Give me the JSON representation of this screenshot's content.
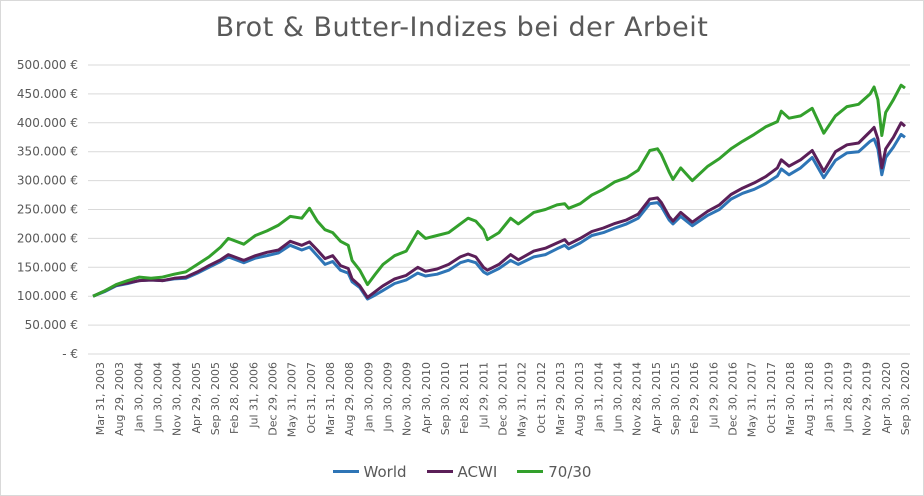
{
  "chart_data": {
    "type": "line",
    "title": "Brot & Butter-Indizes bei der Arbeit",
    "ylim": [
      0,
      500000
    ],
    "y_ticks": [
      {
        "value": 0,
        "label": "-  €"
      },
      {
        "value": 50000,
        "label": "50.000 €"
      },
      {
        "value": 100000,
        "label": "100.000 €"
      },
      {
        "value": 150000,
        "label": "150.000 €"
      },
      {
        "value": 200000,
        "label": "200.000 €"
      },
      {
        "value": 250000,
        "label": "250.000 €"
      },
      {
        "value": 300000,
        "label": "300.000 €"
      },
      {
        "value": 350000,
        "label": "350.000 €"
      },
      {
        "value": 400000,
        "label": "400.000 €"
      },
      {
        "value": 450000,
        "label": "450.000 €"
      },
      {
        "value": 500000,
        "label": "500.000 €"
      }
    ],
    "x_tick_labels": [
      "Mar 31, 2003",
      "Aug 29, 2003",
      "Jan 30, 2004",
      "Jun 30, 2004",
      "Nov 30, 2004",
      "Apr 29, 2005",
      "Sep 30, 2005",
      "Feb 28, 2006",
      "Jul 31, 2006",
      "Dec 29, 2006",
      "May 31, 2007",
      "Oct 31, 2007",
      "Mar 31, 2008",
      "Aug 29, 2008",
      "Jan 30, 2009",
      "Jun 30, 2009",
      "Nov 30, 2009",
      "Apr 30, 2010",
      "Sep 30, 2010",
      "Feb 28, 2011",
      "Jul 29, 2011",
      "Dec 30, 2011",
      "May 31, 2012",
      "Oct 31, 2012",
      "Mar 29, 2013",
      "Aug 30, 2013",
      "Jan 31, 2014",
      "Jun 30, 2014",
      "Nov 28, 2014",
      "Apr 30, 2015",
      "Sep 30, 2015",
      "Feb 29, 2016",
      "Jul 29, 2016",
      "Dec 30, 2016",
      "May 31, 2017",
      "Oct 31, 2017",
      "Mar 30, 2018",
      "Aug 31, 2018",
      "Jan 31, 2019",
      "Jun 28, 2019",
      "Nov 29, 2019",
      "Apr 30, 2020",
      "Sep 30, 2020"
    ],
    "grid": "horizontal",
    "legend_position": "bottom",
    "series": [
      {
        "name": "World",
        "color": "#2E75B6",
        "points": [
          [
            "2003-03",
            100000
          ],
          [
            "2003-06",
            108000
          ],
          [
            "2003-09",
            118000
          ],
          [
            "2003-12",
            122000
          ],
          [
            "2004-03",
            127000
          ],
          [
            "2004-06",
            128000
          ],
          [
            "2004-09",
            127000
          ],
          [
            "2004-12",
            130000
          ],
          [
            "2005-03",
            131000
          ],
          [
            "2005-06",
            140000
          ],
          [
            "2005-09",
            150000
          ],
          [
            "2005-12",
            160000
          ],
          [
            "2006-02",
            168000
          ],
          [
            "2006-06",
            158000
          ],
          [
            "2006-09",
            166000
          ],
          [
            "2006-12",
            170000
          ],
          [
            "2007-03",
            175000
          ],
          [
            "2007-06",
            188000
          ],
          [
            "2007-09",
            180000
          ],
          [
            "2007-11",
            185000
          ],
          [
            "2008-01",
            170000
          ],
          [
            "2008-03",
            155000
          ],
          [
            "2008-05",
            160000
          ],
          [
            "2008-07",
            145000
          ],
          [
            "2008-09",
            140000
          ],
          [
            "2008-10",
            125000
          ],
          [
            "2008-12",
            115000
          ],
          [
            "2009-02",
            95000
          ],
          [
            "2009-04",
            102000
          ],
          [
            "2009-06",
            110000
          ],
          [
            "2009-09",
            122000
          ],
          [
            "2009-12",
            128000
          ],
          [
            "2010-03",
            140000
          ],
          [
            "2010-05",
            135000
          ],
          [
            "2010-08",
            138000
          ],
          [
            "2010-11",
            145000
          ],
          [
            "2011-02",
            158000
          ],
          [
            "2011-04",
            162000
          ],
          [
            "2011-06",
            158000
          ],
          [
            "2011-08",
            142000
          ],
          [
            "2011-09",
            138000
          ],
          [
            "2011-12",
            148000
          ],
          [
            "2012-03",
            162000
          ],
          [
            "2012-05",
            155000
          ],
          [
            "2012-09",
            168000
          ],
          [
            "2012-12",
            172000
          ],
          [
            "2013-03",
            182000
          ],
          [
            "2013-05",
            188000
          ],
          [
            "2013-06",
            182000
          ],
          [
            "2013-09",
            192000
          ],
          [
            "2013-12",
            205000
          ],
          [
            "2014-03",
            210000
          ],
          [
            "2014-06",
            218000
          ],
          [
            "2014-09",
            225000
          ],
          [
            "2014-12",
            235000
          ],
          [
            "2015-03",
            260000
          ],
          [
            "2015-05",
            262000
          ],
          [
            "2015-06",
            255000
          ],
          [
            "2015-08",
            232000
          ],
          [
            "2015-09",
            225000
          ],
          [
            "2015-11",
            238000
          ],
          [
            "2016-02",
            222000
          ],
          [
            "2016-06",
            240000
          ],
          [
            "2016-09",
            250000
          ],
          [
            "2016-12",
            268000
          ],
          [
            "2017-03",
            278000
          ],
          [
            "2017-06",
            285000
          ],
          [
            "2017-09",
            295000
          ],
          [
            "2017-12",
            308000
          ],
          [
            "2018-01",
            320000
          ],
          [
            "2018-03",
            310000
          ],
          [
            "2018-06",
            322000
          ],
          [
            "2018-09",
            340000
          ],
          [
            "2018-12",
            305000
          ],
          [
            "2019-03",
            335000
          ],
          [
            "2019-06",
            348000
          ],
          [
            "2019-09",
            350000
          ],
          [
            "2019-12",
            368000
          ],
          [
            "2020-01",
            372000
          ],
          [
            "2020-02",
            355000
          ],
          [
            "2020-03",
            310000
          ],
          [
            "2020-04",
            340000
          ],
          [
            "2020-06",
            358000
          ],
          [
            "2020-08",
            380000
          ],
          [
            "2020-09",
            375000
          ]
        ]
      },
      {
        "name": "ACWI",
        "color": "#5B1F58",
        "points": [
          [
            "2003-03",
            100000
          ],
          [
            "2003-06",
            109000
          ],
          [
            "2003-09",
            119000
          ],
          [
            "2003-12",
            123000
          ],
          [
            "2004-03",
            127000
          ],
          [
            "2004-06",
            128000
          ],
          [
            "2004-09",
            127000
          ],
          [
            "2004-12",
            131000
          ],
          [
            "2005-03",
            133000
          ],
          [
            "2005-06",
            142000
          ],
          [
            "2005-09",
            153000
          ],
          [
            "2005-12",
            163000
          ],
          [
            "2006-02",
            172000
          ],
          [
            "2006-06",
            162000
          ],
          [
            "2006-09",
            170000
          ],
          [
            "2006-12",
            176000
          ],
          [
            "2007-03",
            180000
          ],
          [
            "2007-06",
            195000
          ],
          [
            "2007-09",
            188000
          ],
          [
            "2007-11",
            194000
          ],
          [
            "2008-01",
            180000
          ],
          [
            "2008-03",
            165000
          ],
          [
            "2008-05",
            170000
          ],
          [
            "2008-07",
            153000
          ],
          [
            "2008-09",
            148000
          ],
          [
            "2008-10",
            130000
          ],
          [
            "2008-12",
            118000
          ],
          [
            "2009-02",
            98000
          ],
          [
            "2009-04",
            108000
          ],
          [
            "2009-06",
            118000
          ],
          [
            "2009-09",
            130000
          ],
          [
            "2009-12",
            136000
          ],
          [
            "2010-03",
            150000
          ],
          [
            "2010-05",
            143000
          ],
          [
            "2010-08",
            147000
          ],
          [
            "2010-11",
            155000
          ],
          [
            "2011-02",
            168000
          ],
          [
            "2011-04",
            173000
          ],
          [
            "2011-06",
            168000
          ],
          [
            "2011-08",
            150000
          ],
          [
            "2011-09",
            145000
          ],
          [
            "2011-12",
            155000
          ],
          [
            "2012-03",
            172000
          ],
          [
            "2012-05",
            163000
          ],
          [
            "2012-09",
            178000
          ],
          [
            "2012-12",
            183000
          ],
          [
            "2013-03",
            192000
          ],
          [
            "2013-05",
            198000
          ],
          [
            "2013-06",
            190000
          ],
          [
            "2013-09",
            200000
          ],
          [
            "2013-12",
            212000
          ],
          [
            "2014-03",
            218000
          ],
          [
            "2014-06",
            226000
          ],
          [
            "2014-09",
            232000
          ],
          [
            "2014-12",
            242000
          ],
          [
            "2015-03",
            268000
          ],
          [
            "2015-05",
            270000
          ],
          [
            "2015-06",
            262000
          ],
          [
            "2015-08",
            238000
          ],
          [
            "2015-09",
            230000
          ],
          [
            "2015-11",
            245000
          ],
          [
            "2016-02",
            228000
          ],
          [
            "2016-06",
            247000
          ],
          [
            "2016-09",
            258000
          ],
          [
            "2016-12",
            276000
          ],
          [
            "2017-03",
            287000
          ],
          [
            "2017-06",
            296000
          ],
          [
            "2017-09",
            307000
          ],
          [
            "2017-12",
            322000
          ],
          [
            "2018-01",
            336000
          ],
          [
            "2018-03",
            325000
          ],
          [
            "2018-06",
            336000
          ],
          [
            "2018-09",
            352000
          ],
          [
            "2018-12",
            316000
          ],
          [
            "2019-03",
            350000
          ],
          [
            "2019-06",
            362000
          ],
          [
            "2019-09",
            365000
          ],
          [
            "2019-12",
            385000
          ],
          [
            "2020-01",
            392000
          ],
          [
            "2020-02",
            372000
          ],
          [
            "2020-03",
            322000
          ],
          [
            "2020-04",
            355000
          ],
          [
            "2020-06",
            375000
          ],
          [
            "2020-08",
            400000
          ],
          [
            "2020-09",
            394000
          ]
        ]
      },
      {
        "name": "70/30",
        "color": "#33A02C",
        "points": [
          [
            "2003-03",
            100000
          ],
          [
            "2003-06",
            109000
          ],
          [
            "2003-09",
            120000
          ],
          [
            "2003-12",
            127000
          ],
          [
            "2004-03",
            133000
          ],
          [
            "2004-06",
            131000
          ],
          [
            "2004-09",
            133000
          ],
          [
            "2004-12",
            138000
          ],
          [
            "2005-03",
            142000
          ],
          [
            "2005-06",
            155000
          ],
          [
            "2005-09",
            168000
          ],
          [
            "2005-12",
            185000
          ],
          [
            "2006-02",
            200000
          ],
          [
            "2006-06",
            190000
          ],
          [
            "2006-09",
            205000
          ],
          [
            "2006-12",
            213000
          ],
          [
            "2007-03",
            223000
          ],
          [
            "2007-06",
            238000
          ],
          [
            "2007-09",
            235000
          ],
          [
            "2007-11",
            252000
          ],
          [
            "2008-01",
            230000
          ],
          [
            "2008-03",
            215000
          ],
          [
            "2008-05",
            210000
          ],
          [
            "2008-07",
            195000
          ],
          [
            "2008-09",
            188000
          ],
          [
            "2008-10",
            162000
          ],
          [
            "2008-12",
            145000
          ],
          [
            "2009-02",
            120000
          ],
          [
            "2009-04",
            138000
          ],
          [
            "2009-06",
            155000
          ],
          [
            "2009-09",
            170000
          ],
          [
            "2009-12",
            178000
          ],
          [
            "2010-03",
            212000
          ],
          [
            "2010-05",
            200000
          ],
          [
            "2010-08",
            205000
          ],
          [
            "2010-11",
            210000
          ],
          [
            "2011-02",
            225000
          ],
          [
            "2011-04",
            235000
          ],
          [
            "2011-06",
            230000
          ],
          [
            "2011-08",
            215000
          ],
          [
            "2011-09",
            198000
          ],
          [
            "2011-12",
            210000
          ],
          [
            "2012-03",
            235000
          ],
          [
            "2012-05",
            225000
          ],
          [
            "2012-09",
            245000
          ],
          [
            "2012-12",
            250000
          ],
          [
            "2013-03",
            258000
          ],
          [
            "2013-05",
            260000
          ],
          [
            "2013-06",
            252000
          ],
          [
            "2013-09",
            260000
          ],
          [
            "2013-12",
            275000
          ],
          [
            "2014-03",
            285000
          ],
          [
            "2014-06",
            298000
          ],
          [
            "2014-09",
            305000
          ],
          [
            "2014-12",
            318000
          ],
          [
            "2015-03",
            352000
          ],
          [
            "2015-05",
            355000
          ],
          [
            "2015-06",
            345000
          ],
          [
            "2015-08",
            315000
          ],
          [
            "2015-09",
            302000
          ],
          [
            "2015-11",
            322000
          ],
          [
            "2016-02",
            300000
          ],
          [
            "2016-06",
            325000
          ],
          [
            "2016-09",
            338000
          ],
          [
            "2016-12",
            355000
          ],
          [
            "2017-03",
            368000
          ],
          [
            "2017-06",
            380000
          ],
          [
            "2017-09",
            393000
          ],
          [
            "2017-12",
            402000
          ],
          [
            "2018-01",
            420000
          ],
          [
            "2018-03",
            408000
          ],
          [
            "2018-06",
            412000
          ],
          [
            "2018-09",
            425000
          ],
          [
            "2018-12",
            382000
          ],
          [
            "2019-03",
            412000
          ],
          [
            "2019-06",
            428000
          ],
          [
            "2019-09",
            432000
          ],
          [
            "2019-12",
            450000
          ],
          [
            "2020-01",
            462000
          ],
          [
            "2020-02",
            440000
          ],
          [
            "2020-03",
            378000
          ],
          [
            "2020-04",
            418000
          ],
          [
            "2020-06",
            440000
          ],
          [
            "2020-08",
            465000
          ],
          [
            "2020-09",
            460000
          ]
        ]
      }
    ]
  }
}
